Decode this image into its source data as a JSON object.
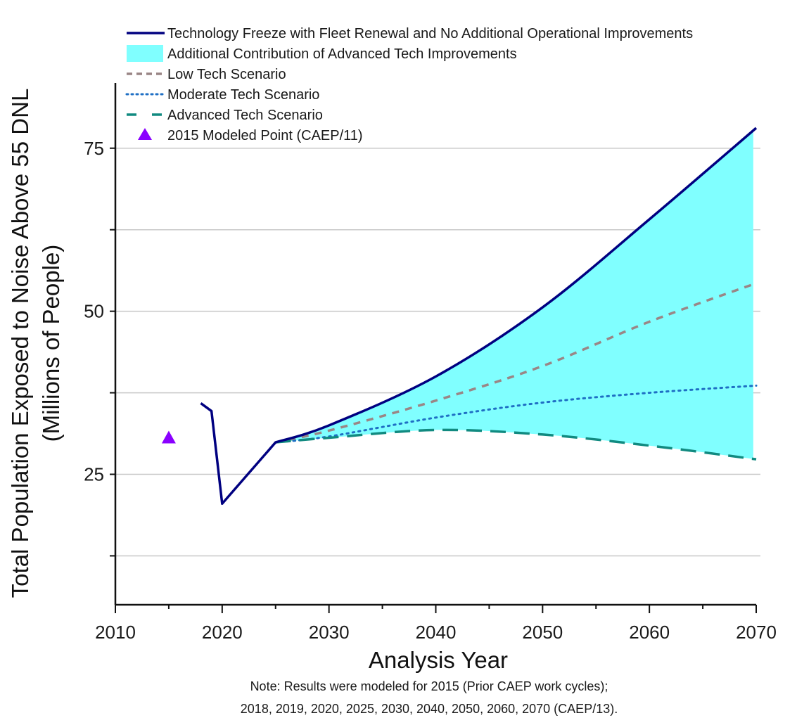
{
  "chart_data": {
    "type": "line",
    "title": "",
    "xlabel": "Analysis Year",
    "ylabel_line1": "Total Population Exposed to Noise Above 55 DNL",
    "ylabel_line2": "(Millions of People)",
    "xlim": [
      2010,
      2070
    ],
    "ylim": [
      5,
      85
    ],
    "x_ticks": [
      2010,
      2020,
      2030,
      2040,
      2050,
      2060,
      2070
    ],
    "x_tick_labels": [
      "2010",
      "2020",
      "2030",
      "2040",
      "2050",
      "2060",
      "2070"
    ],
    "x_minor_ticks": [
      2015,
      2025,
      2035,
      2045,
      2055,
      2065
    ],
    "y_ticks": [
      12.5,
      25,
      37.5,
      50,
      62.5,
      75
    ],
    "y_tick_labels": [
      "",
      "25",
      "",
      "50",
      "",
      "75"
    ],
    "grid": "horizontal",
    "legend_position": "top-left",
    "series": [
      {
        "name": "Technology Freeze with Fleet Renewal and No Additional Operational Improvements",
        "style": "solid",
        "color": "#000080",
        "x": [
          2018,
          2019,
          2020,
          2025,
          2030,
          2040,
          2050,
          2060,
          2070
        ],
        "y": [
          35.9,
          34.7,
          20.5,
          29.9,
          32.5,
          40.0,
          50.6,
          64.1,
          78.1
        ]
      },
      {
        "name": "Low Tech Scenario",
        "style": "dashed",
        "color": "#9a8686",
        "x": [
          2025,
          2030,
          2040,
          2050,
          2060,
          2070
        ],
        "y": [
          29.9,
          31.7,
          36.3,
          41.6,
          48.4,
          54.3
        ]
      },
      {
        "name": "Moderate Tech Scenario",
        "style": "dotted",
        "color": "#1f6fc4",
        "x": [
          2025,
          2030,
          2040,
          2050,
          2060,
          2070
        ],
        "y": [
          29.9,
          30.8,
          33.7,
          36.0,
          37.5,
          38.6
        ]
      },
      {
        "name": "Advanced Tech Scenario",
        "style": "long-dashed",
        "color": "#118a80",
        "x": [
          2025,
          2030,
          2040,
          2050,
          2060,
          2070
        ],
        "y": [
          29.9,
          30.6,
          31.8,
          31.1,
          29.4,
          27.3
        ]
      }
    ],
    "band": {
      "name": "Additional Contribution of Advanced Tech Improvements",
      "color": "#80ffff",
      "upper_series": "Technology Freeze with Fleet Renewal and No Additional Operational Improvements",
      "lower_series": "Advanced Tech Scenario"
    },
    "points": [
      {
        "name": "2015 Modeled Point (CAEP/11)",
        "marker": "triangle",
        "color": "#8a00ff",
        "x": 2015,
        "y": 30.6
      }
    ],
    "legend": [
      {
        "label": "Technology Freeze with Fleet Renewal and No Additional Operational Improvements",
        "kind": "line-solid",
        "color": "#000080"
      },
      {
        "label": "Additional Contribution of Advanced Tech Improvements",
        "kind": "fill",
        "color": "#80ffff"
      },
      {
        "label": "Low Tech Scenario",
        "kind": "line-dashed",
        "color": "#9a8686"
      },
      {
        "label": "Moderate Tech Scenario",
        "kind": "line-dotted",
        "color": "#1f6fc4"
      },
      {
        "label": "Advanced Tech Scenario",
        "kind": "line-longdash",
        "color": "#118a80"
      },
      {
        "label": "2015 Modeled Point (CAEP/11)",
        "kind": "triangle",
        "color": "#8a00ff"
      }
    ],
    "note_line1": "Note: Results were modeled for 2015 (Prior CAEP work cycles);",
    "note_line2": "2018, 2019, 2020, 2025, 2030, 2040, 2050, 2060, 2070 (CAEP/13)."
  }
}
